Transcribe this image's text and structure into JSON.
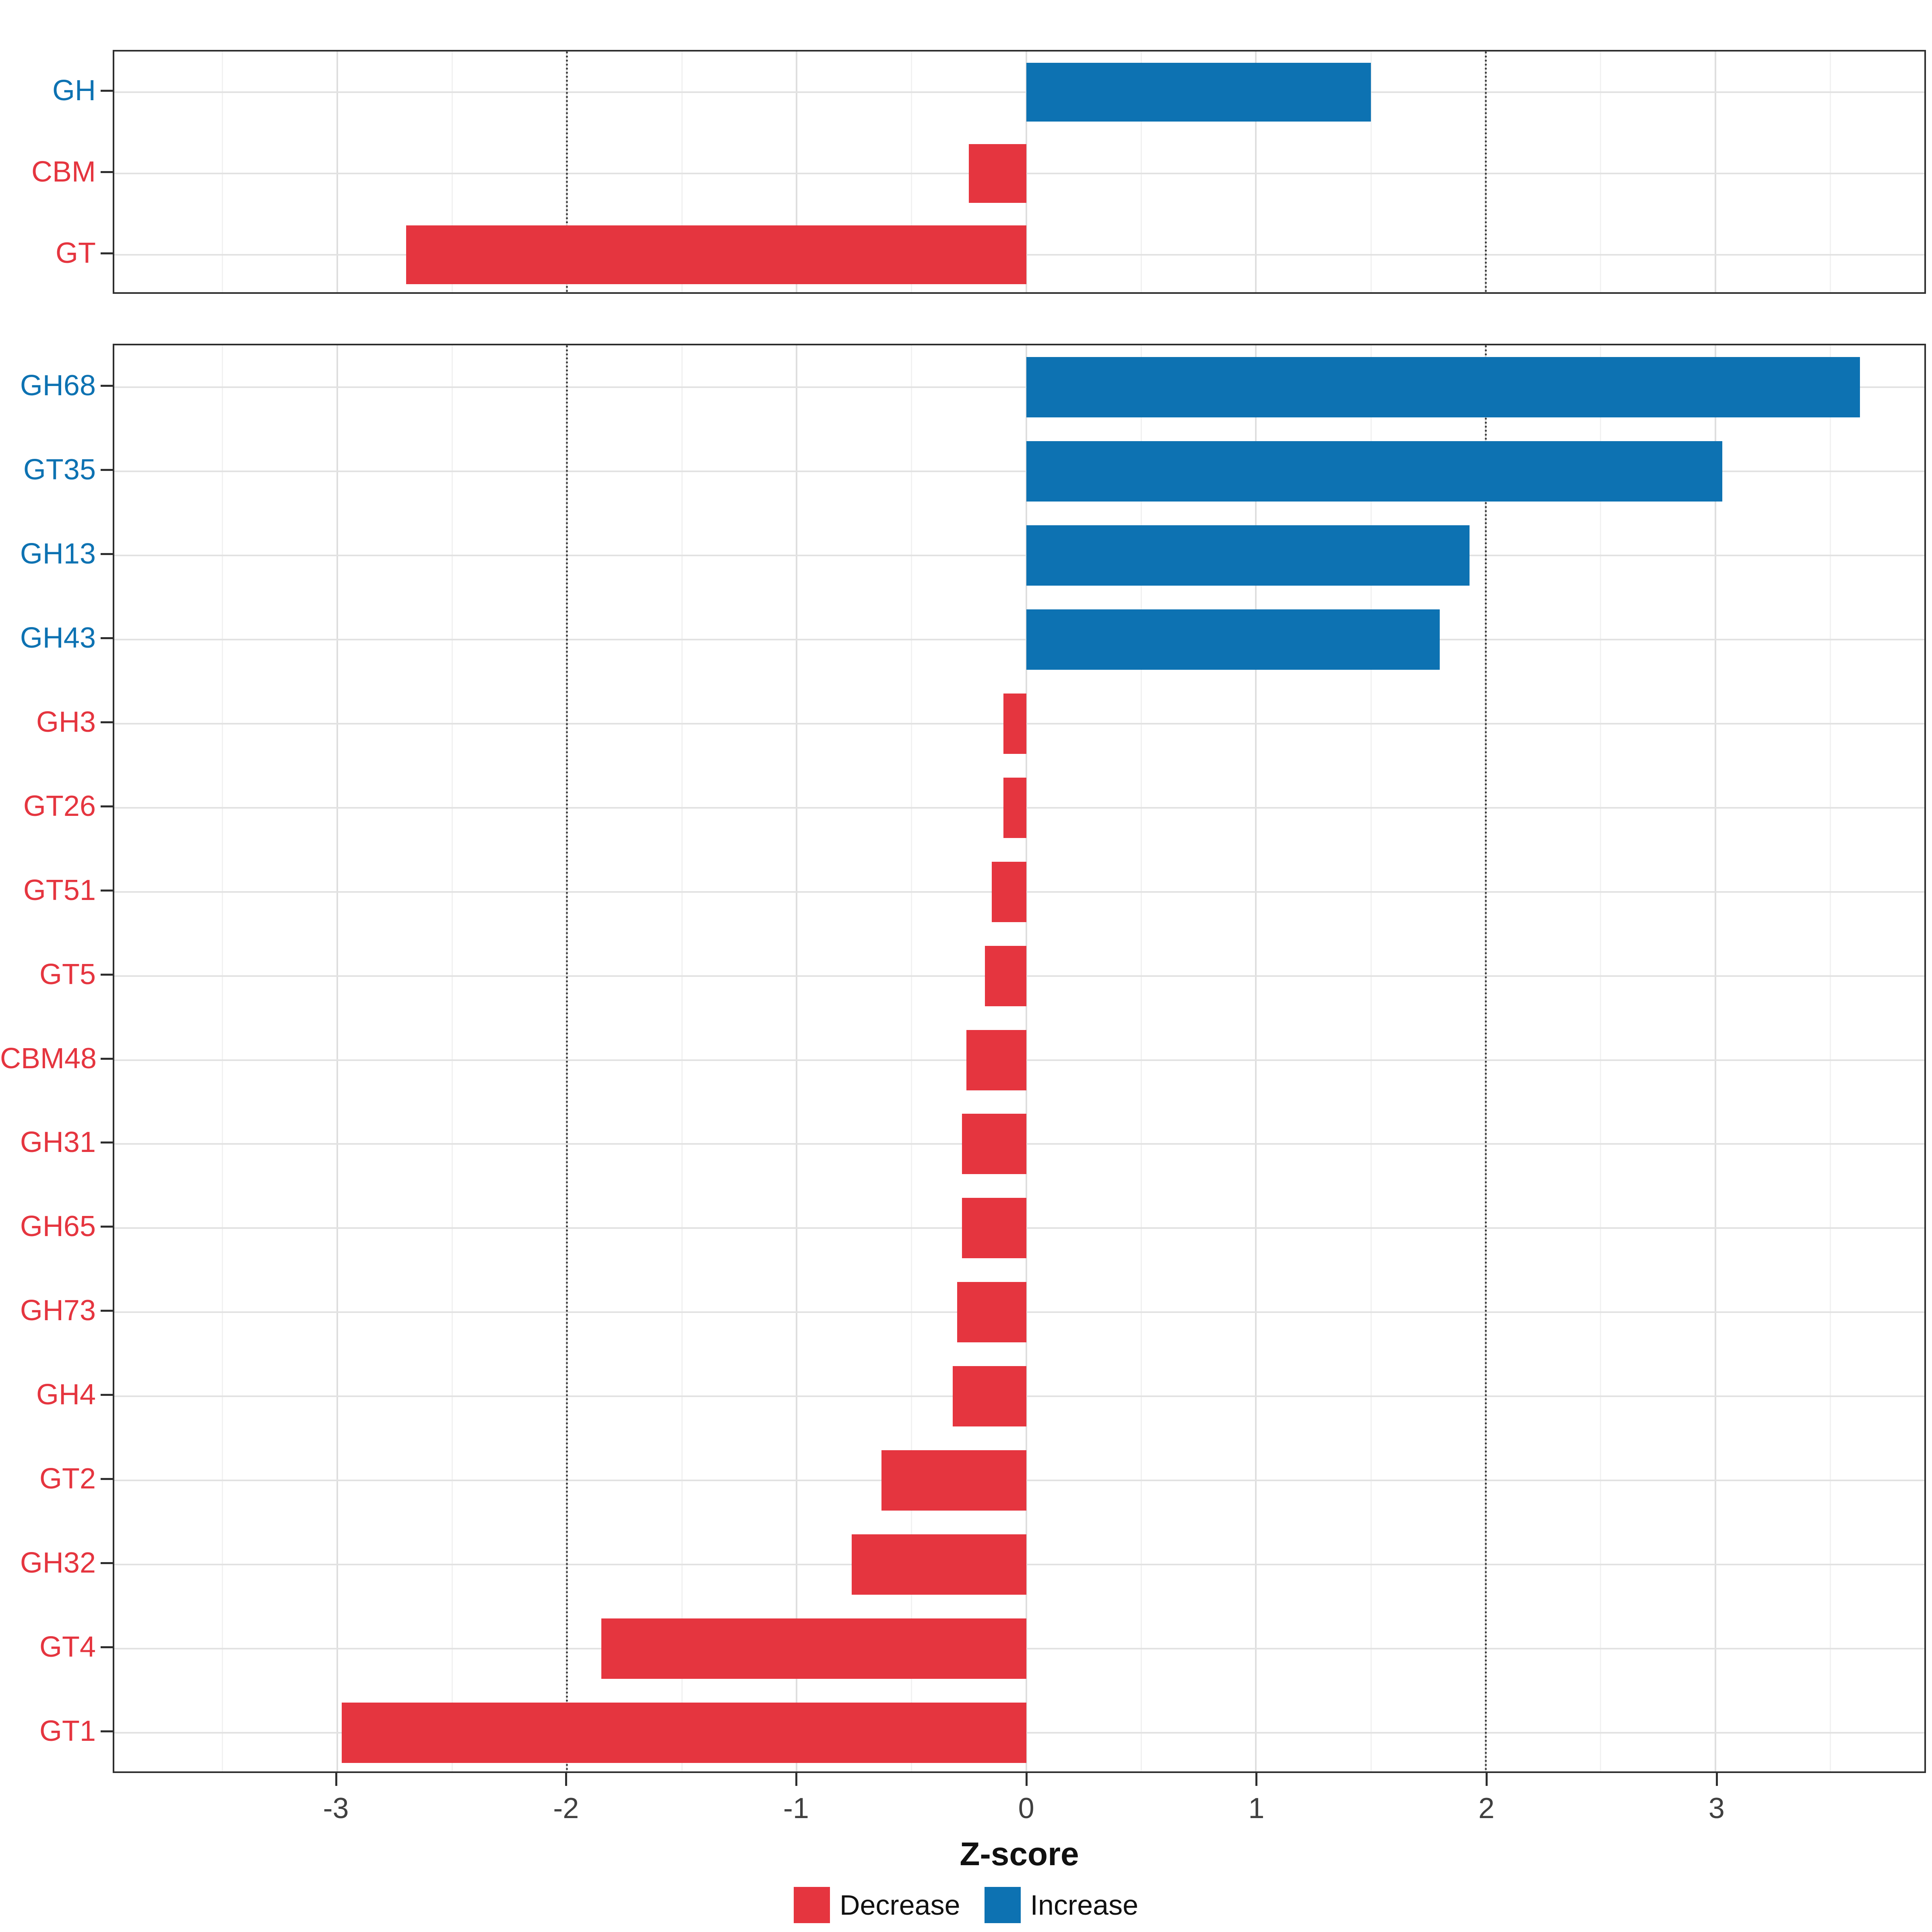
{
  "chart_data": {
    "type": "bar",
    "orientation": "horizontal",
    "title": "",
    "xlabel": "Z-score",
    "ylabel": "",
    "xlim": [
      -3.97,
      3.91
    ],
    "x_ticks": [
      -3,
      -2,
      -1,
      0,
      1,
      2,
      3
    ],
    "reference_lines": [
      -2,
      2
    ],
    "grid": true,
    "legend_position": "bottom",
    "colors": {
      "decrease": "#E5353F",
      "increase": "#0D72B2"
    },
    "legend": [
      {
        "label": "Decrease",
        "color": "#E5353F"
      },
      {
        "label": "Increase",
        "color": "#0D72B2"
      }
    ],
    "panels": [
      {
        "name": "families",
        "categories": [
          "GH",
          "CBM",
          "GT"
        ],
        "values": [
          1.5,
          -0.25,
          -2.7
        ]
      },
      {
        "name": "subfamilies",
        "categories": [
          "GH68",
          "GT35",
          "GH13",
          "GH43",
          "GH3",
          "GT26",
          "GT51",
          "GT5",
          "CBM48",
          "GH31",
          "GH65",
          "GH73",
          "GH4",
          "GT2",
          "GH32",
          "GT4",
          "GT1"
        ],
        "values": [
          3.63,
          3.03,
          1.93,
          1.8,
          -0.1,
          -0.1,
          -0.15,
          -0.18,
          -0.26,
          -0.28,
          -0.28,
          -0.3,
          -0.32,
          -0.63,
          -0.76,
          -1.85,
          -2.98
        ]
      }
    ]
  }
}
